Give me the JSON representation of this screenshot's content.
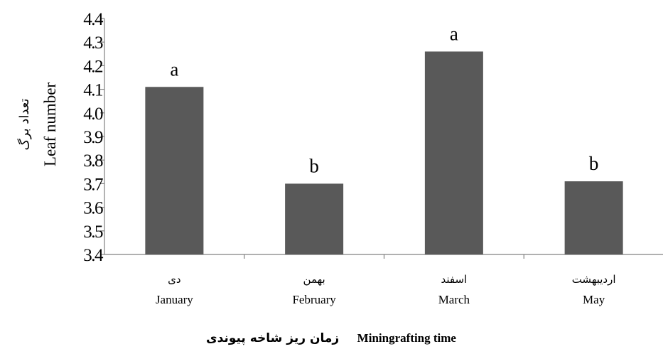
{
  "chart_data": {
    "type": "bar",
    "categories_fa": [
      "دی",
      "بهمن",
      "اسفند",
      "اردیبهشت"
    ],
    "categories": [
      "January",
      "February",
      "March",
      "May"
    ],
    "values": [
      4.11,
      3.7,
      4.26,
      3.71
    ],
    "significance_letters": [
      "a",
      "b",
      "a",
      "b"
    ],
    "ylim": [
      3.4,
      4.4
    ],
    "yticks": [
      "4.4",
      "4.3",
      "4.2",
      "4.1",
      "4.0",
      "3.9",
      "3.8",
      "3.7",
      "3.6",
      "3.5",
      "3.4"
    ],
    "ylabel": "Leaf number",
    "ylabel_fa": "تعداد برگ",
    "xlabel": "Miningrafting time",
    "xlabel_fa": "زمان ریز شاخه پیوندی",
    "grid": false,
    "colors": {
      "bar": "#595959",
      "axis": "#808080"
    }
  }
}
